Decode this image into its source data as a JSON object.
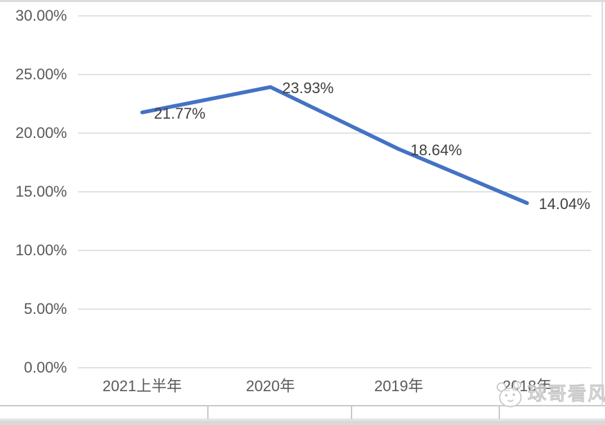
{
  "chart_data": {
    "type": "line",
    "title": "",
    "categories": [
      "2021上半年",
      "2020年",
      "2019年",
      "2018年"
    ],
    "series": [
      {
        "name": "",
        "values": [
          21.77,
          23.93,
          18.64,
          14.04
        ]
      }
    ],
    "data_labels": [
      "21.77%",
      "23.93%",
      "18.64%",
      "14.04%"
    ],
    "y_tick_labels": [
      "30.00%",
      "25.00%",
      "20.00%",
      "15.00%",
      "10.00%",
      "5.00%",
      "0.00%"
    ],
    "ylim": [
      0,
      30
    ],
    "y_tick_step": 5,
    "grid": "horizontal",
    "legend": "none",
    "colors": {
      "line": "#4472C4",
      "gridline": "#D9D9D9",
      "axis_text": "#595959",
      "data_label_text": "#404040"
    }
  },
  "watermark": {
    "text": "球哥看风",
    "icon": "panda-face-logo"
  }
}
